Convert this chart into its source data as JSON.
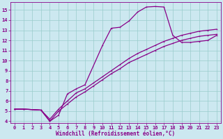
{
  "xlabel": "Windchill (Refroidissement éolien,°C)",
  "bg_color": "#cce8f0",
  "line_color": "#880088",
  "grid_color": "#99cccc",
  "xlim": [
    -0.5,
    23.5
  ],
  "ylim": [
    3.8,
    15.8
  ],
  "xticks": [
    0,
    1,
    2,
    3,
    4,
    5,
    6,
    7,
    8,
    9,
    10,
    11,
    12,
    13,
    14,
    15,
    16,
    17,
    18,
    19,
    20,
    21,
    22,
    23
  ],
  "yticks": [
    4,
    5,
    6,
    7,
    8,
    9,
    10,
    11,
    12,
    13,
    14,
    15
  ],
  "line1_x": [
    0,
    1,
    3,
    4,
    5,
    6,
    7,
    8,
    10,
    11,
    12,
    13,
    14,
    15,
    16,
    17,
    18,
    19,
    20,
    21,
    22,
    23
  ],
  "line1_y": [
    5.2,
    5.2,
    5.1,
    4.0,
    4.6,
    6.7,
    7.2,
    7.6,
    11.5,
    13.2,
    13.3,
    13.9,
    14.8,
    15.3,
    15.35,
    15.3,
    12.5,
    11.8,
    11.8,
    11.9,
    12.0,
    12.5
  ],
  "line2_x": [
    0,
    1,
    3,
    4,
    5,
    6,
    7,
    8,
    9,
    10,
    11,
    12,
    13,
    14,
    15,
    16,
    17,
    18,
    19,
    20,
    21,
    22,
    23
  ],
  "line2_y": [
    5.2,
    5.2,
    5.1,
    4.2,
    5.2,
    6.0,
    6.8,
    7.2,
    7.8,
    8.4,
    9.0,
    9.6,
    10.2,
    10.7,
    11.1,
    11.5,
    11.9,
    12.2,
    12.5,
    12.7,
    12.9,
    13.0,
    13.1
  ],
  "line3_x": [
    0,
    1,
    3,
    4,
    5,
    6,
    7,
    8,
    9,
    10,
    11,
    12,
    13,
    14,
    15,
    16,
    17,
    18,
    19,
    20,
    21,
    22,
    23
  ],
  "line3_y": [
    5.2,
    5.2,
    5.1,
    4.0,
    5.0,
    5.7,
    6.4,
    6.9,
    7.5,
    8.1,
    8.7,
    9.2,
    9.8,
    10.2,
    10.6,
    11.0,
    11.4,
    11.7,
    12.0,
    12.2,
    12.4,
    12.5,
    12.6
  ]
}
